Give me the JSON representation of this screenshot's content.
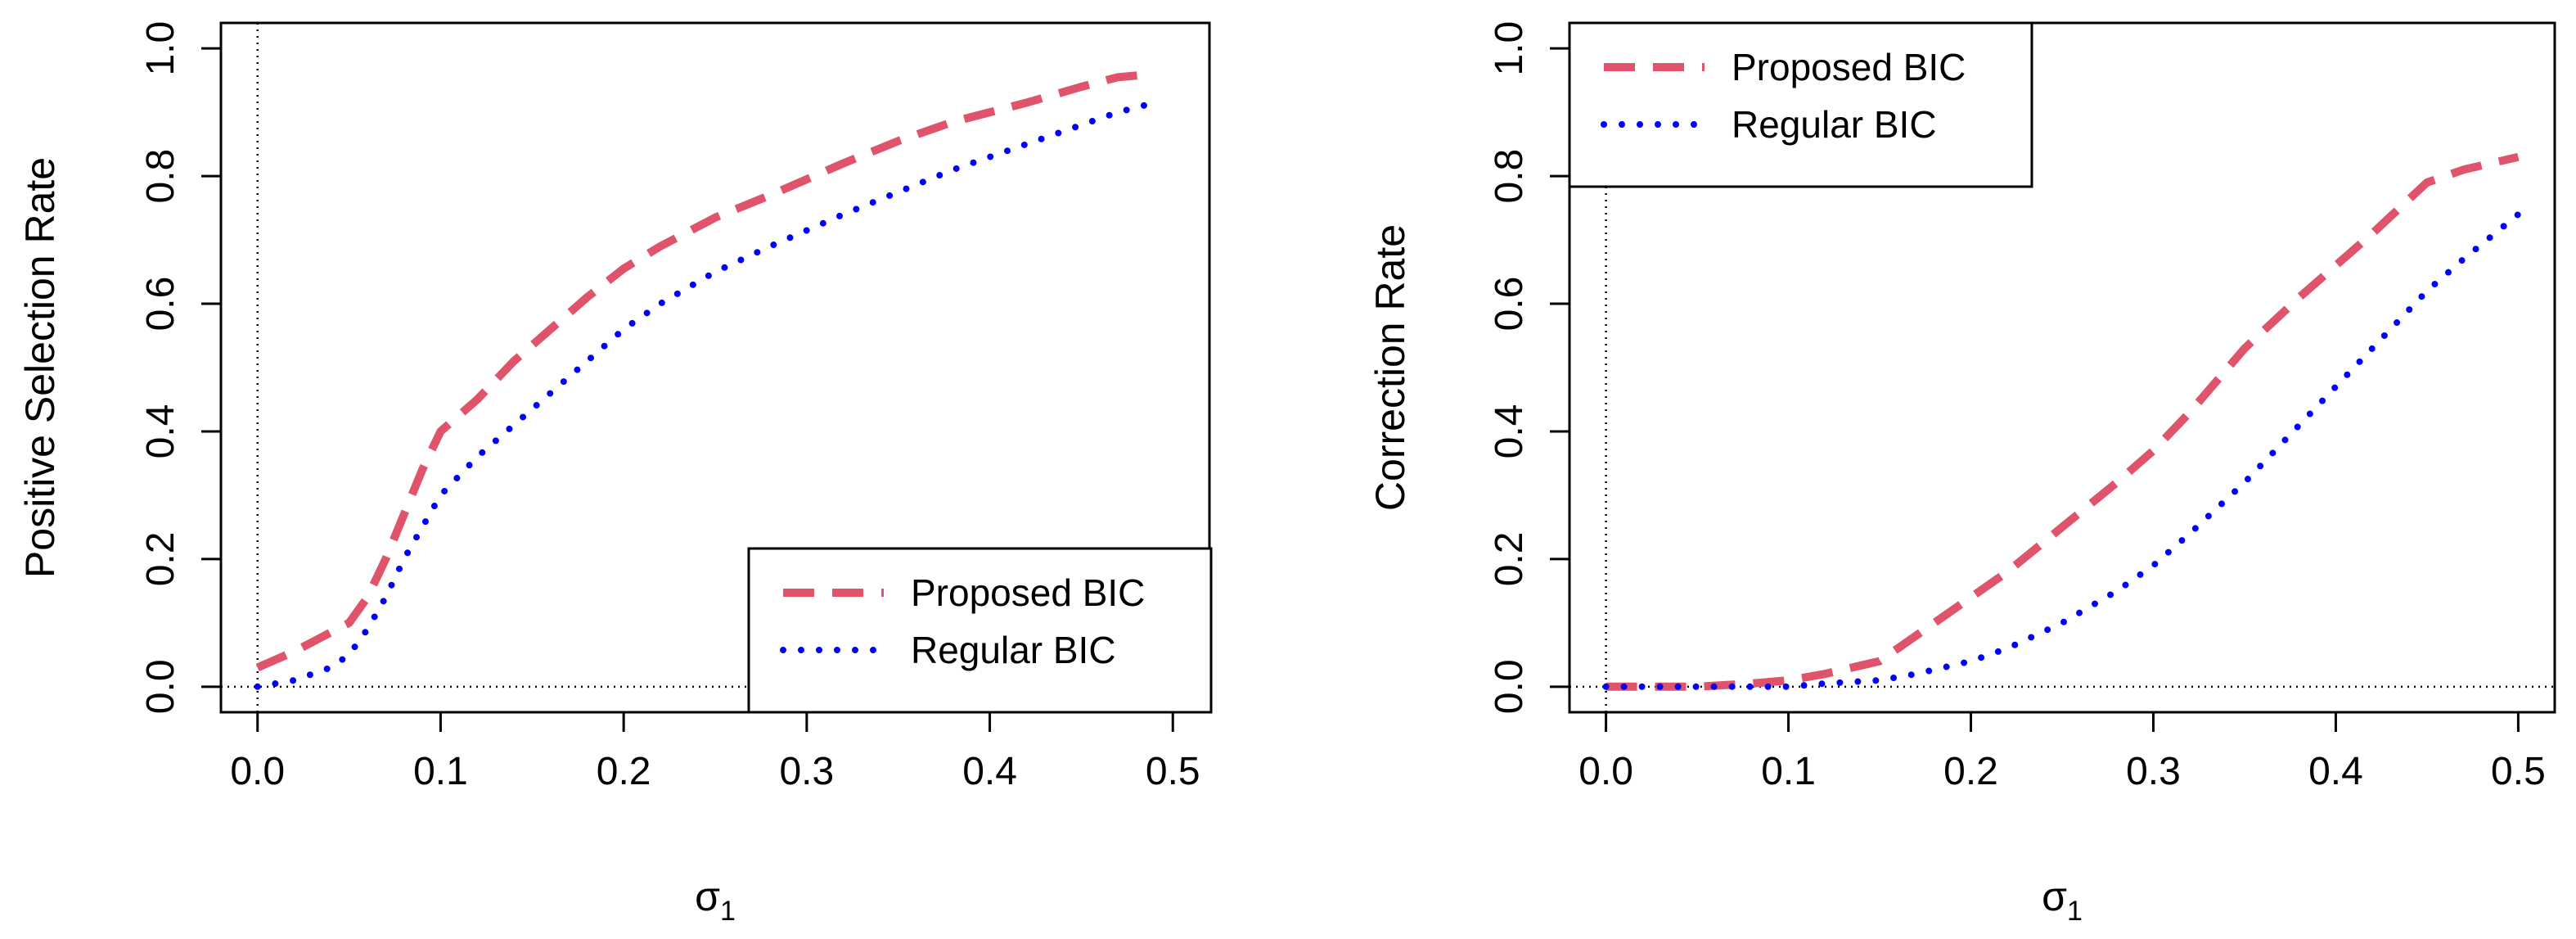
{
  "colors": {
    "proposed": "#DF536B",
    "regular": "#0000FF",
    "axis": "#000000"
  },
  "chart_data": [
    {
      "type": "line",
      "title": "",
      "xlabel": "σ",
      "xlabel_sub": "1",
      "ylabel": "Positive Selection Rate",
      "xlim": [
        0,
        0.5
      ],
      "ylim": [
        0,
        1
      ],
      "xticks": [
        "0.0",
        "0.1",
        "0.2",
        "0.3",
        "0.4",
        "0.5"
      ],
      "yticks": [
        "0.0",
        "0.2",
        "0.4",
        "0.6",
        "0.8",
        "1.0"
      ],
      "reference_lines": {
        "x": 0,
        "y": 0
      },
      "legend": {
        "position": "bottom-right",
        "entries": [
          "Proposed BIC",
          "Regular BIC"
        ]
      },
      "series": [
        {
          "name": "Proposed BIC",
          "style": "dashed",
          "x": [
            0,
            0.02,
            0.04,
            0.05,
            0.06,
            0.07,
            0.08,
            0.09,
            0.1,
            0.12,
            0.14,
            0.16,
            0.18,
            0.2,
            0.22,
            0.25,
            0.28,
            0.3,
            0.32,
            0.35,
            0.38,
            0.4,
            0.42,
            0.45,
            0.47,
            0.49
          ],
          "y": [
            0.03,
            0.055,
            0.085,
            0.1,
            0.14,
            0.2,
            0.27,
            0.34,
            0.4,
            0.45,
            0.51,
            0.56,
            0.61,
            0.655,
            0.69,
            0.735,
            0.77,
            0.795,
            0.82,
            0.855,
            0.885,
            0.9,
            0.915,
            0.94,
            0.955,
            0.96
          ]
        },
        {
          "name": "Regular BIC",
          "style": "dotted",
          "x": [
            0,
            0.02,
            0.04,
            0.05,
            0.06,
            0.07,
            0.08,
            0.09,
            0.1,
            0.12,
            0.14,
            0.16,
            0.18,
            0.2,
            0.22,
            0.25,
            0.28,
            0.3,
            0.32,
            0.35,
            0.38,
            0.4,
            0.42,
            0.45,
            0.47,
            0.49
          ],
          "y": [
            0.0,
            0.01,
            0.03,
            0.05,
            0.09,
            0.14,
            0.2,
            0.25,
            0.3,
            0.36,
            0.41,
            0.46,
            0.51,
            0.56,
            0.6,
            0.65,
            0.69,
            0.715,
            0.74,
            0.775,
            0.81,
            0.83,
            0.85,
            0.88,
            0.9,
            0.915
          ]
        }
      ]
    },
    {
      "type": "line",
      "title": "",
      "xlabel": "σ",
      "xlabel_sub": "1",
      "ylabel": "Correction Rate",
      "xlim": [
        0,
        0.5
      ],
      "ylim": [
        0,
        1
      ],
      "xticks": [
        "0.0",
        "0.1",
        "0.2",
        "0.3",
        "0.4",
        "0.5"
      ],
      "yticks": [
        "0.0",
        "0.2",
        "0.4",
        "0.6",
        "0.8",
        "1.0"
      ],
      "reference_lines": {
        "x": 0,
        "y": 0
      },
      "legend": {
        "position": "top-left",
        "entries": [
          "Proposed BIC",
          "Regular BIC"
        ]
      },
      "series": [
        {
          "name": "Proposed BIC",
          "style": "dashed",
          "x": [
            0,
            0.02,
            0.05,
            0.08,
            0.1,
            0.12,
            0.15,
            0.17,
            0.2,
            0.22,
            0.25,
            0.28,
            0.3,
            0.32,
            0.35,
            0.38,
            0.4,
            0.42,
            0.45,
            0.47,
            0.5
          ],
          "y": [
            0.0,
            0.0,
            0.0,
            0.005,
            0.01,
            0.02,
            0.04,
            0.08,
            0.14,
            0.18,
            0.25,
            0.32,
            0.37,
            0.43,
            0.53,
            0.61,
            0.66,
            0.71,
            0.79,
            0.81,
            0.83
          ]
        },
        {
          "name": "Regular BIC",
          "style": "dotted",
          "x": [
            0,
            0.02,
            0.05,
            0.08,
            0.1,
            0.12,
            0.15,
            0.17,
            0.2,
            0.22,
            0.25,
            0.28,
            0.3,
            0.32,
            0.35,
            0.38,
            0.4,
            0.42,
            0.45,
            0.47,
            0.5
          ],
          "y": [
            0.0,
            0.0,
            0.0,
            0.0,
            0.0,
            0.005,
            0.01,
            0.02,
            0.04,
            0.06,
            0.1,
            0.15,
            0.19,
            0.24,
            0.32,
            0.41,
            0.47,
            0.53,
            0.62,
            0.67,
            0.74
          ]
        }
      ]
    }
  ]
}
